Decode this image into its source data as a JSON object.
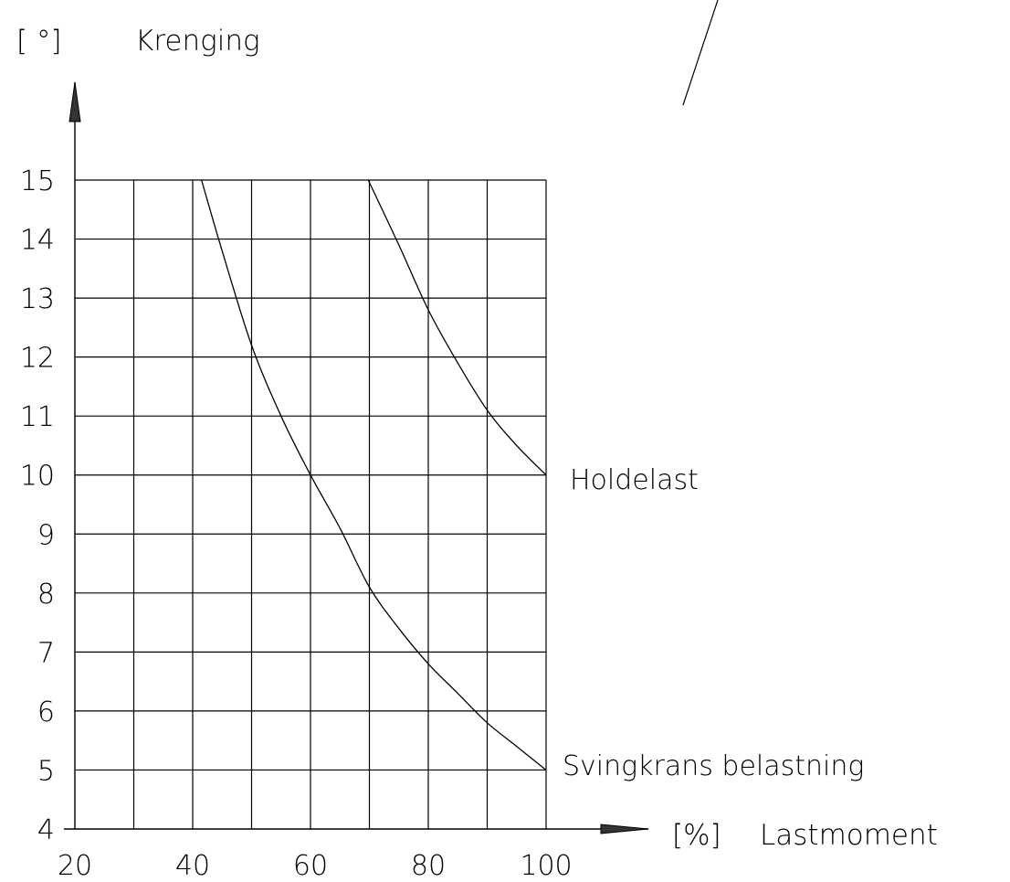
{
  "chart_data": {
    "type": "line",
    "ylabel_unit": "[ °]",
    "ylabel": "Krenging",
    "xlabel_unit": "[%]",
    "xlabel": "Lastmoment",
    "xlim": [
      20,
      100
    ],
    "ylim": [
      4,
      15
    ],
    "x_ticks": [
      {
        "value": 20,
        "label": "20"
      },
      {
        "value": 40,
        "label": "40"
      },
      {
        "value": 60,
        "label": "60"
      },
      {
        "value": 80,
        "label": "80"
      },
      {
        "value": 100,
        "label": "100"
      }
    ],
    "x_grid_step": 10,
    "y_ticks": [
      {
        "value": 4,
        "label": "4"
      },
      {
        "value": 5,
        "label": "5"
      },
      {
        "value": 6,
        "label": "6"
      },
      {
        "value": 7,
        "label": "7"
      },
      {
        "value": 8,
        "label": "8"
      },
      {
        "value": 9,
        "label": "9"
      },
      {
        "value": 10,
        "label": "10"
      },
      {
        "value": 11,
        "label": "11"
      },
      {
        "value": 12,
        "label": "12"
      },
      {
        "value": 13,
        "label": "13"
      },
      {
        "value": 14,
        "label": "14"
      },
      {
        "value": 15,
        "label": "15"
      }
    ],
    "grid": true,
    "series": [
      {
        "name": "Holdelast",
        "x": [
          69.8,
          75,
          80,
          85,
          90,
          95,
          100
        ],
        "y": [
          15,
          13.9,
          12.8,
          11.9,
          11.1,
          10.5,
          10
        ]
      },
      {
        "name": "Svingkrans belastning",
        "x": [
          41.5,
          45,
          50,
          55,
          60,
          65,
          70,
          75,
          80,
          85,
          90,
          95,
          100
        ],
        "y": [
          15,
          13.8,
          12.2,
          11,
          10,
          9.1,
          8.1,
          7.4,
          6.8,
          6.3,
          5.8,
          5.4,
          5
        ]
      }
    ]
  }
}
